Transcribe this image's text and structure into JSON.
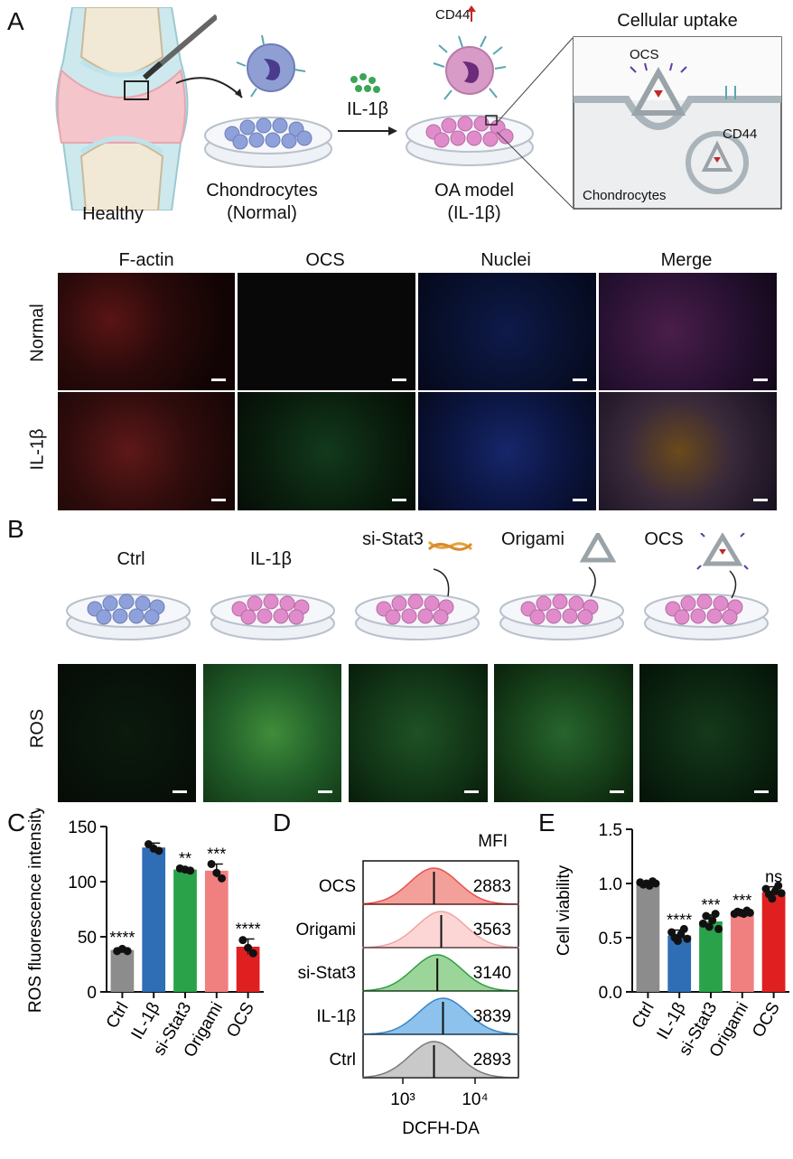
{
  "panels": {
    "a": "A",
    "b": "B",
    "c": "C",
    "d": "D",
    "e": "E"
  },
  "panel_a": {
    "healthy": "Healthy",
    "chondrocytes": "Chondrocytes",
    "normal_paren": "(Normal)",
    "il1b": "IL-1β",
    "oa_model": "OA model",
    "oa_paren": "(IL-1β)",
    "cd44_top": "CD44",
    "cellular_uptake": "Cellular uptake",
    "ocs": "OCS",
    "cd44": "CD44",
    "inset_chondrocytes": "Chondrocytes",
    "columns": [
      "F-actin",
      "OCS",
      "Nuclei",
      "Merge"
    ],
    "rows": [
      "Normal",
      "IL-1β"
    ]
  },
  "panel_b": {
    "groups": [
      "Ctrl",
      "IL-1β",
      "si-Stat3",
      "Origami",
      "OCS"
    ],
    "row_label": "ROS"
  },
  "colors": {
    "ctrl": "#8c8c8c",
    "il1b": "#2f6db5",
    "sistat3": "#2aa24a",
    "origami": "#f08080",
    "ocs": "#e02020",
    "factin": "#c0292b",
    "ocs_label": "#2a9d3c",
    "nuclei": "#2b3990"
  },
  "chart_data": [
    {
      "type": "bar",
      "panel": "C",
      "ylabel": "ROS fluorescence intensity",
      "categories": [
        "Ctrl",
        "IL-1β",
        "si-Stat3",
        "Origami",
        "OCS"
      ],
      "values": [
        38,
        131,
        111,
        110,
        41
      ],
      "errors": [
        2,
        4,
        1,
        6,
        7
      ],
      "points": [
        [
          37,
          39,
          37
        ],
        [
          134,
          130,
          128
        ],
        [
          112,
          111,
          110
        ],
        [
          116,
          108,
          103
        ],
        [
          47,
          40,
          35
        ]
      ],
      "significance": [
        "****",
        "",
        "**",
        "***",
        "****"
      ],
      "ylim": [
        0,
        150
      ],
      "yticks": [
        0,
        50,
        100,
        150
      ]
    },
    {
      "type": "histogram",
      "panel": "D",
      "xlabel": "DCFH-DA",
      "header": "MFI",
      "series": [
        {
          "name": "OCS",
          "mfi": "2883",
          "peak": 2700,
          "color": "#e8514e",
          "fill": "#f4a09a"
        },
        {
          "name": "Origami",
          "mfi": "3563",
          "peak": 3400,
          "color": "#f2a3a3",
          "fill": "#fbd6d4"
        },
        {
          "name": "si-Stat3",
          "mfi": "3140",
          "peak": 3000,
          "color": "#2f9e44",
          "fill": "#9bd59a"
        },
        {
          "name": "IL-1β",
          "mfi": "3839",
          "peak": 3600,
          "color": "#3a86c8",
          "fill": "#8cc2ec"
        },
        {
          "name": "Ctrl",
          "mfi": "2893",
          "peak": 2700,
          "color": "#7a7a7a",
          "fill": "#c9c9c9"
        }
      ],
      "xticks": [
        "10³",
        "10⁴"
      ]
    },
    {
      "type": "bar",
      "panel": "E",
      "ylabel": "Cell viability",
      "categories": [
        "Ctrl",
        "IL-1β",
        "si-Stat3",
        "Origami",
        "OCS"
      ],
      "values": [
        1.0,
        0.52,
        0.65,
        0.73,
        0.92
      ],
      "errors": [
        0.02,
        0.05,
        0.06,
        0.02,
        0.05
      ],
      "points": [
        [
          1.01,
          0.99,
          1.0,
          0.98,
          1.02,
          1.0
        ],
        [
          0.55,
          0.5,
          0.47,
          0.53,
          0.58,
          0.49
        ],
        [
          0.63,
          0.7,
          0.6,
          0.66,
          0.72,
          0.58
        ],
        [
          0.72,
          0.74,
          0.73,
          0.72,
          0.75,
          0.73
        ],
        [
          0.95,
          0.9,
          0.86,
          0.93,
          0.98,
          0.91
        ]
      ],
      "significance": [
        "",
        "****",
        "***",
        "***",
        "ns"
      ],
      "ylim": [
        0,
        1.5
      ],
      "yticks": [
        "0.0",
        "0.5",
        "1.0",
        "1.5"
      ]
    }
  ]
}
